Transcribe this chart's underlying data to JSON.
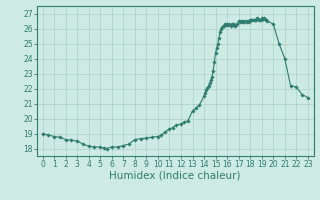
{
  "xlabel": "Humidex (Indice chaleur)",
  "line_color": "#2e7d6e",
  "marker": "D",
  "marker_size": 1.8,
  "bg_color": "#cdeae4",
  "grid_color": "#b0d4cc",
  "axes_color": "#2e7d6e",
  "spine_color": "#2e7d6e",
  "xlim": [
    -0.5,
    23.5
  ],
  "ylim": [
    17.5,
    27.5
  ],
  "yticks": [
    18,
    19,
    20,
    21,
    22,
    23,
    24,
    25,
    26,
    27
  ],
  "xticks": [
    0,
    1,
    2,
    3,
    4,
    5,
    6,
    7,
    8,
    9,
    10,
    11,
    12,
    13,
    14,
    15,
    16,
    17,
    18,
    19,
    20,
    21,
    22,
    23
  ],
  "tick_fontsize": 5.5,
  "xlabel_fontsize": 7.5,
  "x_pts": [
    0,
    0.5,
    1,
    1.5,
    2,
    2.5,
    3,
    3.5,
    4,
    4.5,
    5,
    5.3,
    5.6,
    6,
    6.5,
    7,
    7.5,
    8,
    8.5,
    9,
    9.5,
    10,
    10.3,
    10.6,
    11,
    11.3,
    11.6,
    12,
    12.3,
    12.6,
    13,
    13.3,
    13.6,
    14,
    14.1,
    14.2,
    14.3,
    14.4,
    14.5,
    14.6,
    14.7,
    14.8,
    14.9,
    15,
    15.1,
    15.2,
    15.3,
    15.4,
    15.5,
    15.6,
    15.7,
    15.8,
    15.9,
    16,
    16.1,
    16.2,
    16.3,
    16.4,
    16.5,
    16.6,
    16.7,
    16.8,
    16.9,
    17,
    17.1,
    17.2,
    17.3,
    17.4,
    17.5,
    17.6,
    17.7,
    17.8,
    17.9,
    18,
    18.1,
    18.2,
    18.3,
    18.4,
    18.5,
    18.6,
    18.7,
    18.8,
    18.9,
    19,
    19.1,
    19.2,
    19.3,
    19.4,
    19.5,
    20,
    20.5,
    21,
    21.5,
    22,
    22.5,
    23
  ],
  "y_pts": [
    19.0,
    18.9,
    18.8,
    18.75,
    18.6,
    18.55,
    18.5,
    18.3,
    18.15,
    18.1,
    18.1,
    18.05,
    18.0,
    18.1,
    18.1,
    18.2,
    18.3,
    18.6,
    18.65,
    18.7,
    18.75,
    18.8,
    18.9,
    19.1,
    19.3,
    19.4,
    19.55,
    19.65,
    19.75,
    19.85,
    20.5,
    20.7,
    20.9,
    21.5,
    21.7,
    21.9,
    22.05,
    22.2,
    22.4,
    22.6,
    22.8,
    23.2,
    23.8,
    24.4,
    24.7,
    25.0,
    25.4,
    25.8,
    26.0,
    26.1,
    26.2,
    26.3,
    26.25,
    26.3,
    26.25,
    26.3,
    26.2,
    26.3,
    26.25,
    26.3,
    26.2,
    26.25,
    26.3,
    26.5,
    26.45,
    26.5,
    26.45,
    26.5,
    26.45,
    26.5,
    26.45,
    26.5,
    26.45,
    26.6,
    26.55,
    26.6,
    26.55,
    26.6,
    26.55,
    26.7,
    26.65,
    26.6,
    26.55,
    26.7,
    26.65,
    26.7,
    26.65,
    26.6,
    26.5,
    26.3,
    25.0,
    24.0,
    22.2,
    22.1,
    21.6,
    21.4
  ]
}
